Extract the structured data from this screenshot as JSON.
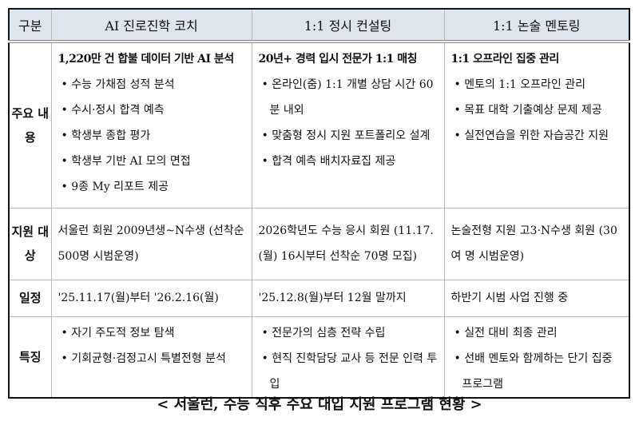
{
  "table": {
    "headers": [
      "구분",
      "AI 진로진학 코치",
      "1:1 정시 컨설팅",
      "1:1 논술 멘토링"
    ],
    "rows": [
      {
        "label": "주요 내용",
        "cells": [
          {
            "title": "1,220만 건 합불 데이터 기반 AI 분석",
            "bullets": [
              "수능 가채점 성적 분석",
              "수시·정시 합격 예측",
              "학생부 종합 평가",
              "학생부 기반 AI 모의 면접",
              "9종 My 리포트 제공"
            ]
          },
          {
            "title": "20년+ 경력 입시 전문가 1:1 매칭",
            "bullets": [
              "온라인(줌) 1:1 개별 상담 시간 60분 내외",
              "맞춤형 정시 지원 포트폴리오 설계",
              "합격 예측 배치자료집 제공"
            ]
          },
          {
            "title": "1:1 오프라인 집중 관리",
            "bullets": [
              "멘토의 1:1 오프라인 관리",
              "목표 대학 기출예상 문제 제공",
              "실전연습을 위한 자습공간 지원"
            ]
          }
        ]
      },
      {
        "label": "지원 대상",
        "cells": [
          {
            "text": "서울런 회원 2009년생~N수생 (선착순 500명 시범운영)"
          },
          {
            "text": "2026학년도 수능 응시 회원 (11.17.(월) 16시부터 선착순 70명 모집)"
          },
          {
            "text": "논술전형 지원 고3·N수생 회원 (30여 명 시범운영)"
          }
        ]
      },
      {
        "label": "일정",
        "cells": [
          {
            "text": "'25.11.17(월)부터 '26.2.16(월)"
          },
          {
            "text": "'25.12.8(월)부터 12월 말까지"
          },
          {
            "text": "하반기 시범 사업 진행 중"
          }
        ]
      },
      {
        "label": "특징",
        "cells": [
          {
            "bullets": [
              "자기 주도적 정보 탐색",
              "기회균형·검정고시 특별전형 분석"
            ]
          },
          {
            "bullets": [
              "전문가의 심층 전략 수립",
              "현직 진학담당 교사 등 전문 인력 투입"
            ]
          },
          {
            "bullets": [
              "실전 대비 최종 관리",
              "선배 멘토와 함께하는 단기 집중 프로그램"
            ]
          }
        ]
      }
    ]
  },
  "caption": "< 서울런, 수능 직후 주요 대입 지원 프로그램 현황 >",
  "colors": {
    "header_bg": "#dde5ef"
  }
}
